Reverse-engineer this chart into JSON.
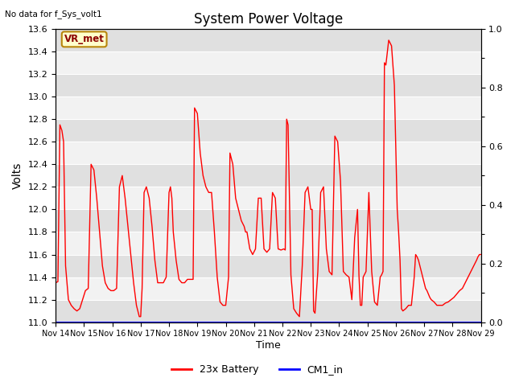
{
  "title": "System Power Voltage",
  "xlabel": "Time",
  "ylabel": "Volts",
  "no_data_text": "No data for f_Sys_volt1",
  "vr_met_label": "VR_met",
  "ylim_left": [
    11.0,
    13.6
  ],
  "ylim_right": [
    0.0,
    1.0
  ],
  "yticks_left": [
    11.0,
    11.2,
    11.4,
    11.6,
    11.8,
    12.0,
    12.2,
    12.4,
    12.6,
    12.8,
    13.0,
    13.2,
    13.4,
    13.6
  ],
  "yticks_right": [
    0.0,
    0.2,
    0.4,
    0.6,
    0.8,
    1.0
  ],
  "yticks_right_minor": [
    0.1,
    0.3,
    0.5,
    0.7,
    0.9
  ],
  "xtick_labels": [
    "Nov 14",
    "Nov 15",
    "Nov 16",
    "Nov 17",
    "Nov 18",
    "Nov 19",
    "Nov 20",
    "Nov 21",
    "Nov 22",
    "Nov 23",
    "Nov 24",
    "Nov 25",
    "Nov 26",
    "Nov 27",
    "Nov 28",
    "Nov 29"
  ],
  "legend_entries": [
    "23x Battery",
    "CM1_in"
  ],
  "line_color_battery": "red",
  "line_color_cm1": "blue",
  "band_light": "#f2f2f2",
  "band_dark": "#e0e0e0",
  "bg_color": "#e8e8e8",
  "battery_x": [
    0,
    0.08,
    0.15,
    0.22,
    0.28,
    0.35,
    0.45,
    0.55,
    0.65,
    0.75,
    0.85,
    0.95,
    1.05,
    1.15,
    1.25,
    1.35,
    1.45,
    1.55,
    1.65,
    1.75,
    1.85,
    1.95,
    2.05,
    2.15,
    2.25,
    2.35,
    2.45,
    2.55,
    2.65,
    2.75,
    2.85,
    2.95,
    3.0,
    3.05,
    3.12,
    3.2,
    3.3,
    3.4,
    3.5,
    3.6,
    3.7,
    3.8,
    3.9,
    4.0,
    4.05,
    4.1,
    4.15,
    4.25,
    4.35,
    4.45,
    4.55,
    4.65,
    4.75,
    4.8,
    4.85,
    4.9,
    5.0,
    5.1,
    5.2,
    5.3,
    5.4,
    5.5,
    5.6,
    5.7,
    5.8,
    5.9,
    6.0,
    6.1,
    6.15,
    6.25,
    6.35,
    6.45,
    6.55,
    6.65,
    6.7,
    6.75,
    6.85,
    6.95,
    7.05,
    7.15,
    7.25,
    7.35,
    7.45,
    7.55,
    7.65,
    7.75,
    7.85,
    7.95,
    8.05,
    8.1,
    8.15,
    8.2,
    8.3,
    8.4,
    8.5,
    8.6,
    8.7,
    8.8,
    8.9,
    9.0,
    9.05,
    9.1,
    9.15,
    9.25,
    9.35,
    9.45,
    9.55,
    9.65,
    9.75,
    9.85,
    9.95,
    10.05,
    10.15,
    10.25,
    10.35,
    10.45,
    10.55,
    10.65,
    10.7,
    10.75,
    10.8,
    10.85,
    10.95,
    11.05,
    11.15,
    11.25,
    11.35,
    11.45,
    11.5,
    11.55,
    11.6,
    11.65,
    11.75,
    11.85,
    11.95,
    12.05,
    12.1,
    12.15,
    12.2,
    12.25,
    12.35,
    12.45,
    12.55,
    12.65,
    12.7,
    12.75,
    12.8,
    12.85,
    12.9,
    12.95,
    13.0,
    13.05,
    13.1,
    13.15,
    13.2,
    13.25,
    13.35,
    13.45,
    13.55,
    13.65,
    13.75,
    13.85,
    13.95,
    14.05,
    14.15,
    14.25,
    14.35,
    14.45,
    14.55,
    14.65,
    14.75,
    14.85,
    14.9,
    14.95,
    15.0
  ],
  "battery_y": [
    11.35,
    11.36,
    12.75,
    12.7,
    12.6,
    11.5,
    11.2,
    11.15,
    11.12,
    11.1,
    11.12,
    11.2,
    11.28,
    11.3,
    12.4,
    12.35,
    12.1,
    11.8,
    11.5,
    11.35,
    11.3,
    11.28,
    11.28,
    11.3,
    12.2,
    12.3,
    12.1,
    11.85,
    11.6,
    11.35,
    11.15,
    11.05,
    11.05,
    11.3,
    12.15,
    12.2,
    12.1,
    11.85,
    11.55,
    11.35,
    11.35,
    11.35,
    11.4,
    12.15,
    12.2,
    12.1,
    11.8,
    11.55,
    11.38,
    11.35,
    11.35,
    11.38,
    11.38,
    11.38,
    11.38,
    12.9,
    12.85,
    12.5,
    12.3,
    12.2,
    12.15,
    12.15,
    11.8,
    11.4,
    11.18,
    11.15,
    11.15,
    11.4,
    12.5,
    12.4,
    12.1,
    12.0,
    11.9,
    11.85,
    11.8,
    11.8,
    11.65,
    11.6,
    11.65,
    12.1,
    12.1,
    11.65,
    11.62,
    11.65,
    12.15,
    12.1,
    11.65,
    11.64,
    11.65,
    11.64,
    12.8,
    12.75,
    11.42,
    11.12,
    11.08,
    11.05,
    11.5,
    12.15,
    12.2,
    12.0,
    12.0,
    11.1,
    11.08,
    11.45,
    12.15,
    12.2,
    11.65,
    11.45,
    11.42,
    12.65,
    12.6,
    12.25,
    11.45,
    11.42,
    11.4,
    11.2,
    11.75,
    12.0,
    11.42,
    11.15,
    11.15,
    11.4,
    11.45,
    12.15,
    11.45,
    11.18,
    11.15,
    11.4,
    11.42,
    11.45,
    13.3,
    13.28,
    13.5,
    13.45,
    13.1,
    12.0,
    11.8,
    11.55,
    11.12,
    11.1,
    11.12,
    11.15,
    11.15,
    11.4,
    11.6,
    11.58,
    11.55,
    11.5,
    11.45,
    11.4,
    11.35,
    11.3,
    11.28,
    11.25,
    11.22,
    11.2,
    11.18,
    11.15,
    11.15,
    11.15,
    11.17,
    11.18,
    11.2,
    11.22,
    11.25,
    11.28,
    11.3,
    11.35,
    11.4,
    11.45,
    11.5,
    11.55,
    11.58,
    11.6,
    11.6
  ]
}
